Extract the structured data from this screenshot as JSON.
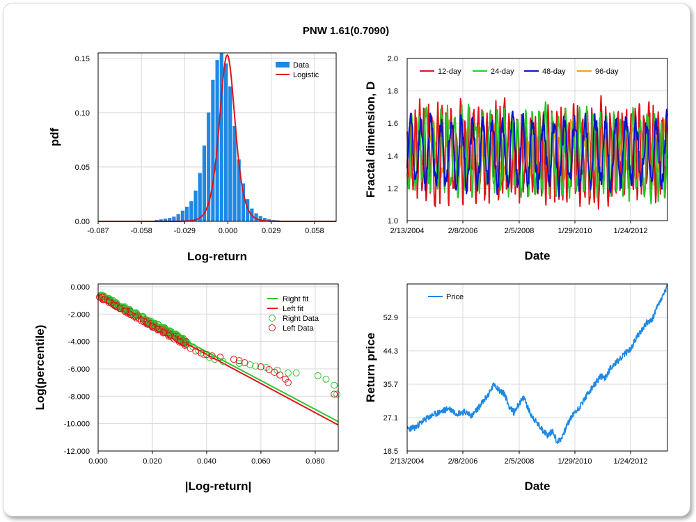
{
  "title": "PNW 1.61(0.7090)",
  "colors": {
    "data_blue": "#1e88e5",
    "logistic_red": "#e0141b",
    "green": "#2ec52e",
    "red": "#e0141b",
    "navy": "#0a14c8",
    "orange": "#f5a00f",
    "price_blue": "#1e88e5",
    "grid": "#d8d8d8"
  },
  "chart_data": [
    {
      "id": "pdf",
      "type": "bar",
      "xlabel": "Log-return",
      "ylabel": "pdf",
      "xlim": [
        -0.087,
        0.0725
      ],
      "ylim": [
        0,
        0.155
      ],
      "xticks": [
        "-0.087",
        "-0.058",
        "-0.029",
        "0.000",
        "0.029",
        "0.058"
      ],
      "xtick_values": [
        -0.087,
        -0.058,
        -0.029,
        0.0,
        0.029,
        0.058
      ],
      "yticks": [
        "0.00",
        "0.05",
        "0.10",
        "0.15"
      ],
      "ytick_values": [
        0,
        0.05,
        0.1,
        0.15
      ],
      "grid": true,
      "legend": {
        "position": "top-right",
        "entries": [
          "Data",
          "Logistic"
        ]
      },
      "bin_width": 0.0029,
      "bin_centers": [
        -0.0855,
        -0.0826,
        -0.0797,
        -0.0768,
        -0.0739,
        -0.071,
        -0.0681,
        -0.0652,
        -0.0623,
        -0.0594,
        -0.0565,
        -0.0536,
        -0.0507,
        -0.0478,
        -0.0449,
        -0.042,
        -0.0391,
        -0.0362,
        -0.0333,
        -0.0304,
        -0.0275,
        -0.0246,
        -0.0217,
        -0.0188,
        -0.0159,
        -0.013,
        -0.0101,
        -0.0072,
        -0.0043,
        -0.0014,
        0.0015,
        0.0044,
        0.0073,
        0.0102,
        0.0131,
        0.016,
        0.0189,
        0.0218,
        0.0247,
        0.0276,
        0.0305,
        0.0334,
        0.0363,
        0.0392,
        0.0421,
        0.045,
        0.0479,
        0.0508,
        0.0537,
        0.0566,
        0.0595,
        0.0624,
        0.0653,
        0.0682,
        0.0711
      ],
      "bin_values": [
        0.0003,
        0,
        0,
        0,
        0,
        0,
        0,
        0,
        0,
        0.0003,
        0.0003,
        0.0006,
        0.0006,
        0.0012,
        0.0018,
        0.0025,
        0.0031,
        0.0043,
        0.0067,
        0.0098,
        0.0135,
        0.0185,
        0.0283,
        0.0445,
        0.0697,
        0.1002,
        0.1302,
        0.1485,
        0.155,
        0.1452,
        0.1241,
        0.0878,
        0.0569,
        0.0349,
        0.0204,
        0.0118,
        0.0074,
        0.0049,
        0.0031,
        0.0018,
        0.0012,
        0.0009,
        0.0006,
        0.0006,
        0.0003,
        0.0003,
        0.0003,
        0.0003,
        0,
        0,
        0,
        0,
        0,
        0,
        0
      ],
      "logistic": {
        "location": -0.0005,
        "scale": 0.0016,
        "peak": 0.153
      }
    },
    {
      "id": "fractal",
      "type": "line",
      "xlabel": "Date",
      "ylabel": "Fractal dimension, D",
      "ylim": [
        1.0,
        2.0
      ],
      "yticks": [
        "1.0",
        "1.2",
        "1.4",
        "1.6",
        "1.8",
        "2.0"
      ],
      "ytick_values": [
        1.0,
        1.2,
        1.4,
        1.6,
        1.8,
        2.0
      ],
      "xticks": [
        "2/13/2004",
        "2/8/2006",
        "2/5/2008",
        "1/29/2010",
        "1/24/2012"
      ],
      "x_start": "2004-02-13",
      "x_end": "2013-04-30",
      "grid": true,
      "legend": {
        "position": "top",
        "entries": [
          "12-day",
          "24-day",
          "48-day",
          "96-day"
        ]
      },
      "series": [
        {
          "name": "12-day",
          "color": "#e0141b",
          "mean": 1.42,
          "amp": 0.28,
          "period": 11,
          "seed": 3
        },
        {
          "name": "24-day",
          "color": "#2ec52e",
          "mean": 1.42,
          "amp": 0.24,
          "period": 17,
          "seed": 7
        },
        {
          "name": "48-day",
          "color": "#0a14c8",
          "mean": 1.42,
          "amp": 0.2,
          "period": 26,
          "seed": 11
        },
        {
          "name": "96-day",
          "color": "#f5a00f",
          "mean": 1.42,
          "amp": 0.16,
          "period": 38,
          "seed": 19
        }
      ]
    },
    {
      "id": "tail",
      "type": "scatter",
      "xlabel": "|Log-return|",
      "ylabel": "Log(percentile)",
      "xlim": [
        0,
        0.0885
      ],
      "ylim": [
        -12.0,
        0.2
      ],
      "xticks": [
        "0.000",
        "0.020",
        "0.040",
        "0.060",
        "0.080"
      ],
      "xtick_values": [
        0,
        0.02,
        0.04,
        0.06,
        0.08
      ],
      "yticks": [
        "0.000",
        "-2.000",
        "-4.000",
        "-6.000",
        "-8.000",
        "-10.000",
        "-12.000"
      ],
      "ytick_values": [
        0,
        -2,
        -4,
        -6,
        -8,
        -10,
        -12
      ],
      "grid": true,
      "legend": {
        "position": "top-right",
        "entries": [
          "Right fit",
          "Left fit",
          "Right Data",
          "Left Data"
        ]
      },
      "right_fit": {
        "x": [
          0,
          0.0885
        ],
        "y": [
          -0.55,
          -9.85
        ]
      },
      "left_fit": {
        "x": [
          0,
          0.0885
        ],
        "y": [
          -0.7,
          -10.1
        ]
      },
      "right_data": [
        [
          0.001,
          -0.62
        ],
        [
          0.003,
          -0.85
        ],
        [
          0.005,
          -1.05
        ],
        [
          0.007,
          -1.28
        ],
        [
          0.009,
          -1.5
        ],
        [
          0.011,
          -1.72
        ],
        [
          0.013,
          -1.95
        ],
        [
          0.015,
          -2.15
        ],
        [
          0.017,
          -2.38
        ],
        [
          0.019,
          -2.58
        ],
        [
          0.021,
          -2.8
        ],
        [
          0.023,
          -3.02
        ],
        [
          0.025,
          -3.22
        ],
        [
          0.027,
          -3.45
        ],
        [
          0.029,
          -3.68
        ],
        [
          0.031,
          -3.9
        ],
        [
          0.033,
          -4.15
        ],
        [
          0.035,
          -4.4
        ],
        [
          0.037,
          -4.65
        ],
        [
          0.039,
          -4.95
        ],
        [
          0.041,
          -5.15
        ],
        [
          0.043,
          -5.3
        ],
        [
          0.046,
          -5.45
        ],
        [
          0.052,
          -5.6
        ],
        [
          0.056,
          -5.7
        ],
        [
          0.058,
          -5.8
        ],
        [
          0.062,
          -5.9
        ],
        [
          0.066,
          -6.1
        ],
        [
          0.07,
          -6.3
        ],
        [
          0.073,
          -6.3
        ],
        [
          0.081,
          -6.5
        ],
        [
          0.084,
          -6.75
        ],
        [
          0.087,
          -7.2
        ],
        [
          0.088,
          -7.85
        ]
      ],
      "left_data": [
        [
          0.0005,
          -0.75
        ],
        [
          0.002,
          -0.95
        ],
        [
          0.004,
          -1.15
        ],
        [
          0.006,
          -1.38
        ],
        [
          0.008,
          -1.6
        ],
        [
          0.01,
          -1.82
        ],
        [
          0.012,
          -2.05
        ],
        [
          0.014,
          -2.28
        ],
        [
          0.016,
          -2.5
        ],
        [
          0.018,
          -2.72
        ],
        [
          0.02,
          -2.95
        ],
        [
          0.022,
          -3.15
        ],
        [
          0.024,
          -3.38
        ],
        [
          0.026,
          -3.6
        ],
        [
          0.028,
          -3.82
        ],
        [
          0.03,
          -4.05
        ],
        [
          0.032,
          -4.28
        ],
        [
          0.034,
          -4.5
        ],
        [
          0.036,
          -4.7
        ],
        [
          0.038,
          -4.85
        ],
        [
          0.04,
          -4.95
        ],
        [
          0.042,
          -5.05
        ],
        [
          0.045,
          -5.15
        ],
        [
          0.05,
          -5.3
        ],
        [
          0.052,
          -5.4
        ],
        [
          0.054,
          -5.55
        ],
        [
          0.06,
          -5.85
        ],
        [
          0.063,
          -6.05
        ],
        [
          0.065,
          -6.25
        ],
        [
          0.067,
          -6.45
        ],
        [
          0.069,
          -6.75
        ],
        [
          0.07,
          -7.0
        ],
        [
          0.087,
          -7.85
        ]
      ]
    },
    {
      "id": "price",
      "type": "line",
      "xlabel": "Date",
      "ylabel": "Return price",
      "ylim": [
        18.5,
        61.5
      ],
      "yticks": [
        "18.5",
        "27.1",
        "35.7",
        "44.3",
        "52.9"
      ],
      "ytick_values": [
        18.5,
        27.1,
        35.7,
        44.3,
        52.9
      ],
      "xticks": [
        "2/13/2004",
        "2/8/2006",
        "2/5/2008",
        "1/29/2010",
        "1/24/2012"
      ],
      "x_start": "2004-02-13",
      "x_end": "2013-04-30",
      "grid": true,
      "legend": {
        "position": "top-left",
        "entries": [
          "Price"
        ]
      },
      "series": [
        {
          "name": "Price",
          "color": "#1e88e5",
          "anchors": [
            [
              0,
              24.2
            ],
            [
              0.03,
              24.5
            ],
            [
              0.06,
              26.2
            ],
            [
              0.1,
              27.8
            ],
            [
              0.13,
              28.6
            ],
            [
              0.16,
              29.5
            ],
            [
              0.19,
              28.2
            ],
            [
              0.22,
              28.6
            ],
            [
              0.25,
              27.6
            ],
            [
              0.28,
              30.2
            ],
            [
              0.31,
              32.8
            ],
            [
              0.335,
              35.8
            ],
            [
              0.355,
              34.0
            ],
            [
              0.375,
              33.2
            ],
            [
              0.39,
              30.2
            ],
            [
              0.41,
              28.4
            ],
            [
              0.43,
              30.8
            ],
            [
              0.45,
              32.2
            ],
            [
              0.47,
              28.5
            ],
            [
              0.5,
              25.5
            ],
            [
              0.52,
              24.0
            ],
            [
              0.54,
              22.5
            ],
            [
              0.56,
              23.8
            ],
            [
              0.575,
              20.8
            ],
            [
              0.59,
              21.5
            ],
            [
              0.61,
              24.5
            ],
            [
              0.63,
              27.2
            ],
            [
              0.66,
              29.6
            ],
            [
              0.69,
              32.8
            ],
            [
              0.72,
              35.6
            ],
            [
              0.745,
              37.8
            ],
            [
              0.76,
              37.2
            ],
            [
              0.78,
              39.8
            ],
            [
              0.8,
              41.2
            ],
            [
              0.82,
              42.2
            ],
            [
              0.84,
              43.8
            ],
            [
              0.86,
              44.8
            ],
            [
              0.88,
              47.6
            ],
            [
              0.9,
              49.6
            ],
            [
              0.92,
              51.6
            ],
            [
              0.94,
              52.0
            ],
            [
              0.955,
              54.8
            ],
            [
              0.97,
              56.8
            ],
            [
              0.985,
              58.8
            ],
            [
              1.0,
              61.0
            ]
          ]
        }
      ]
    }
  ]
}
